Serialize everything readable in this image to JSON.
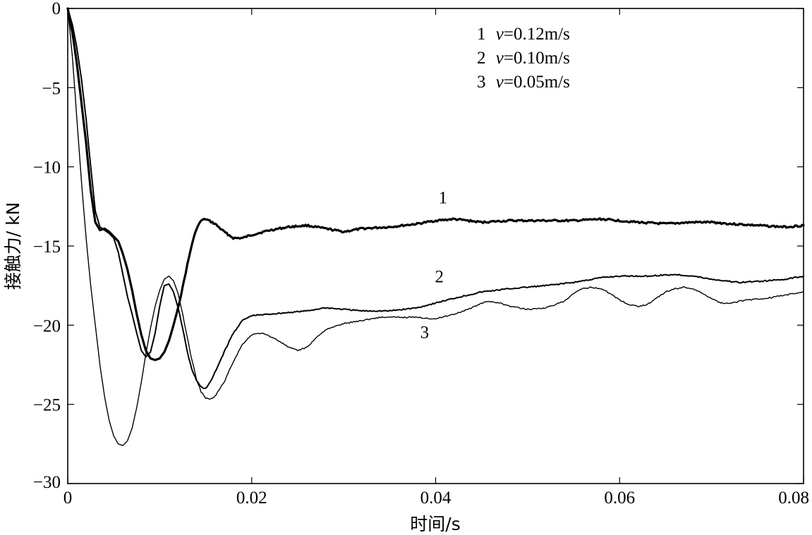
{
  "chart_data": {
    "type": "line",
    "title": "",
    "xlabel": "时间/s",
    "ylabel": "接触力/ kN",
    "xlim": [
      0,
      0.08
    ],
    "ylim": [
      -30,
      0
    ],
    "xticks": [
      0,
      0.02,
      0.04,
      0.06,
      0.08
    ],
    "xtick_labels": [
      "0",
      "0.02",
      "0.04",
      "0.06",
      "0.08"
    ],
    "yticks": [
      0,
      -5,
      -10,
      -15,
      -20,
      -25,
      -30
    ],
    "ytick_labels": [
      "0",
      "−5",
      "−10",
      "−15",
      "−20",
      "−25",
      "−30"
    ],
    "grid": false,
    "legend_position": "top-center",
    "legend": [
      {
        "num": "1",
        "sym": "v",
        "eq": "=0.12m/s"
      },
      {
        "num": "2",
        "sym": "v",
        "eq": "=0.10m/s"
      },
      {
        "num": "3",
        "sym": "v",
        "eq": "=0.05m/s"
      }
    ],
    "series": [
      {
        "name": "1",
        "label": "1",
        "label_at": [
          0.0408,
          -12.3
        ],
        "stroke_width": 3.2,
        "points": [
          [
            0,
            0
          ],
          [
            0.0005,
            -1.5
          ],
          [
            0.001,
            -3.5
          ],
          [
            0.0015,
            -6
          ],
          [
            0.002,
            -8.5
          ],
          [
            0.0025,
            -11.5
          ],
          [
            0.003,
            -13.5
          ],
          [
            0.0035,
            -14
          ],
          [
            0.004,
            -13.9
          ],
          [
            0.0045,
            -14.1
          ],
          [
            0.005,
            -14.4
          ],
          [
            0.0055,
            -14.7
          ],
          [
            0.006,
            -15.5
          ],
          [
            0.0065,
            -16.5
          ],
          [
            0.007,
            -17.8
          ],
          [
            0.0075,
            -19.3
          ],
          [
            0.008,
            -20.6
          ],
          [
            0.0085,
            -21.6
          ],
          [
            0.009,
            -22.1
          ],
          [
            0.0095,
            -22.2
          ],
          [
            0.01,
            -22.1
          ],
          [
            0.0105,
            -21.7
          ],
          [
            0.011,
            -21
          ],
          [
            0.0115,
            -20
          ],
          [
            0.012,
            -18.9
          ],
          [
            0.0125,
            -17.6
          ],
          [
            0.013,
            -16.2
          ],
          [
            0.0135,
            -14.9
          ],
          [
            0.014,
            -13.9
          ],
          [
            0.0145,
            -13.4
          ],
          [
            0.015,
            -13.3
          ],
          [
            0.016,
            -13.6
          ],
          [
            0.017,
            -14.1
          ],
          [
            0.018,
            -14.5
          ],
          [
            0.019,
            -14.5
          ],
          [
            0.02,
            -14.3
          ],
          [
            0.022,
            -14
          ],
          [
            0.024,
            -13.8
          ],
          [
            0.026,
            -13.7
          ],
          [
            0.028,
            -13.9
          ],
          [
            0.03,
            -14.1
          ],
          [
            0.032,
            -13.9
          ],
          [
            0.035,
            -13.8
          ],
          [
            0.038,
            -13.6
          ],
          [
            0.04,
            -13.4
          ],
          [
            0.042,
            -13.3
          ],
          [
            0.045,
            -13.5
          ],
          [
            0.048,
            -13.4
          ],
          [
            0.05,
            -13.4
          ],
          [
            0.055,
            -13.4
          ],
          [
            0.058,
            -13.3
          ],
          [
            0.06,
            -13.4
          ],
          [
            0.062,
            -13.5
          ],
          [
            0.065,
            -13.6
          ],
          [
            0.068,
            -13.5
          ],
          [
            0.07,
            -13.5
          ],
          [
            0.072,
            -13.6
          ],
          [
            0.075,
            -13.7
          ],
          [
            0.078,
            -13.8
          ],
          [
            0.08,
            -13.7
          ]
        ]
      },
      {
        "name": "2",
        "label": "2",
        "label_at": [
          0.0404,
          -17.3
        ],
        "stroke_width": 2.0,
        "points": [
          [
            0,
            0
          ],
          [
            0.0005,
            -1
          ],
          [
            0.001,
            -2.5
          ],
          [
            0.0015,
            -4.5
          ],
          [
            0.002,
            -7
          ],
          [
            0.0025,
            -10
          ],
          [
            0.003,
            -12.8
          ],
          [
            0.0035,
            -13.8
          ],
          [
            0.004,
            -14
          ],
          [
            0.0045,
            -14.2
          ],
          [
            0.005,
            -14.5
          ],
          [
            0.0055,
            -15.4
          ],
          [
            0.006,
            -16.8
          ],
          [
            0.0065,
            -18.2
          ],
          [
            0.007,
            -19.3
          ],
          [
            0.0075,
            -20.5
          ],
          [
            0.008,
            -21.6
          ],
          [
            0.0085,
            -22
          ],
          [
            0.009,
            -21.7
          ],
          [
            0.0095,
            -20.5
          ],
          [
            0.01,
            -18.8
          ],
          [
            0.0105,
            -17.5
          ],
          [
            0.011,
            -17.4
          ],
          [
            0.0115,
            -17.9
          ],
          [
            0.012,
            -18.9
          ],
          [
            0.0125,
            -20.2
          ],
          [
            0.013,
            -21.7
          ],
          [
            0.0135,
            -22.8
          ],
          [
            0.014,
            -23.5
          ],
          [
            0.0145,
            -23.9
          ],
          [
            0.015,
            -24
          ],
          [
            0.0155,
            -23.6
          ],
          [
            0.016,
            -23
          ],
          [
            0.017,
            -21.7
          ],
          [
            0.018,
            -20.5
          ],
          [
            0.019,
            -19.7
          ],
          [
            0.02,
            -19.4
          ],
          [
            0.022,
            -19.3
          ],
          [
            0.024,
            -19.2
          ],
          [
            0.026,
            -19.1
          ],
          [
            0.028,
            -18.9
          ],
          [
            0.03,
            -19
          ],
          [
            0.032,
            -19.1
          ],
          [
            0.035,
            -19.1
          ],
          [
            0.038,
            -18.9
          ],
          [
            0.04,
            -18.6
          ],
          [
            0.042,
            -18.3
          ],
          [
            0.045,
            -17.9
          ],
          [
            0.048,
            -17.7
          ],
          [
            0.05,
            -17.6
          ],
          [
            0.052,
            -17.5
          ],
          [
            0.055,
            -17.3
          ],
          [
            0.058,
            -17
          ],
          [
            0.06,
            -16.9
          ],
          [
            0.063,
            -16.9
          ],
          [
            0.066,
            -16.8
          ],
          [
            0.068,
            -16.9
          ],
          [
            0.07,
            -17.1
          ],
          [
            0.073,
            -17.3
          ],
          [
            0.076,
            -17.2
          ],
          [
            0.078,
            -17.1
          ],
          [
            0.08,
            -16.9
          ]
        ]
      },
      {
        "name": "3",
        "label": "3",
        "label_at": [
          0.0388,
          -20.8
        ],
        "stroke_width": 1.4,
        "points": [
          [
            0,
            0
          ],
          [
            0.0005,
            -3
          ],
          [
            0.001,
            -7
          ],
          [
            0.0015,
            -11
          ],
          [
            0.002,
            -14.5
          ],
          [
            0.0025,
            -17.5
          ],
          [
            0.003,
            -20
          ],
          [
            0.0035,
            -22.5
          ],
          [
            0.004,
            -24.5
          ],
          [
            0.0045,
            -26
          ],
          [
            0.005,
            -27
          ],
          [
            0.0055,
            -27.5
          ],
          [
            0.006,
            -27.6
          ],
          [
            0.0065,
            -27.3
          ],
          [
            0.007,
            -26.5
          ],
          [
            0.0075,
            -25.2
          ],
          [
            0.008,
            -23.6
          ],
          [
            0.0085,
            -21.8
          ],
          [
            0.009,
            -20.2
          ],
          [
            0.0095,
            -18.8
          ],
          [
            0.01,
            -17.8
          ],
          [
            0.0105,
            -17.1
          ],
          [
            0.011,
            -16.9
          ],
          [
            0.0115,
            -17.2
          ],
          [
            0.012,
            -18
          ],
          [
            0.0125,
            -19.3
          ],
          [
            0.013,
            -20.8
          ],
          [
            0.0135,
            -22.2
          ],
          [
            0.014,
            -23.4
          ],
          [
            0.0145,
            -24.2
          ],
          [
            0.015,
            -24.6
          ],
          [
            0.0155,
            -24.7
          ],
          [
            0.016,
            -24.5
          ],
          [
            0.017,
            -23.6
          ],
          [
            0.018,
            -22.3
          ],
          [
            0.019,
            -21.2
          ],
          [
            0.02,
            -20.6
          ],
          [
            0.021,
            -20.5
          ],
          [
            0.022,
            -20.7
          ],
          [
            0.023,
            -21
          ],
          [
            0.024,
            -21.4
          ],
          [
            0.025,
            -21.6
          ],
          [
            0.026,
            -21.4
          ],
          [
            0.027,
            -20.8
          ],
          [
            0.028,
            -20.3
          ],
          [
            0.03,
            -19.9
          ],
          [
            0.032,
            -19.7
          ],
          [
            0.034,
            -19.5
          ],
          [
            0.036,
            -19.5
          ],
          [
            0.038,
            -19.5
          ],
          [
            0.04,
            -19.6
          ],
          [
            0.042,
            -19.3
          ],
          [
            0.044,
            -18.9
          ],
          [
            0.045,
            -18.6
          ],
          [
            0.046,
            -18.5
          ],
          [
            0.047,
            -18.6
          ],
          [
            0.048,
            -18.8
          ],
          [
            0.05,
            -19
          ],
          [
            0.052,
            -18.9
          ],
          [
            0.054,
            -18.5
          ],
          [
            0.055,
            -18
          ],
          [
            0.056,
            -17.7
          ],
          [
            0.057,
            -17.6
          ],
          [
            0.058,
            -17.7
          ],
          [
            0.059,
            -18
          ],
          [
            0.06,
            -18.4
          ],
          [
            0.061,
            -18.7
          ],
          [
            0.062,
            -18.8
          ],
          [
            0.063,
            -18.7
          ],
          [
            0.064,
            -18.3
          ],
          [
            0.065,
            -17.9
          ],
          [
            0.066,
            -17.7
          ],
          [
            0.067,
            -17.6
          ],
          [
            0.068,
            -17.7
          ],
          [
            0.069,
            -18
          ],
          [
            0.07,
            -18.3
          ],
          [
            0.071,
            -18.6
          ],
          [
            0.072,
            -18.6
          ],
          [
            0.074,
            -18.4
          ],
          [
            0.076,
            -18.3
          ],
          [
            0.078,
            -18.1
          ],
          [
            0.08,
            -17.9
          ]
        ]
      }
    ]
  }
}
